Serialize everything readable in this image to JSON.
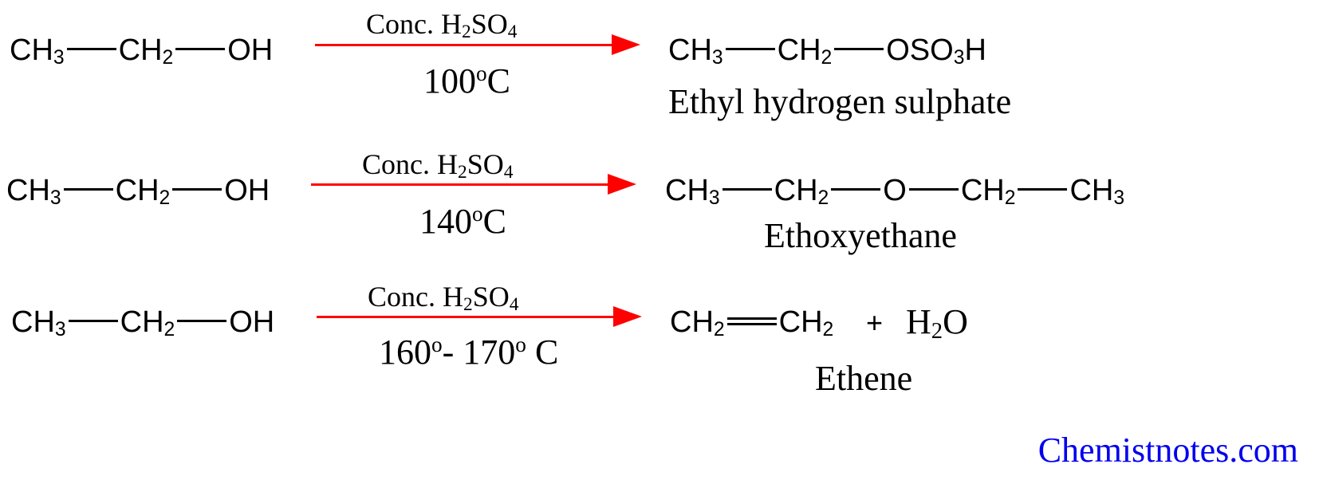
{
  "reactions": [
    {
      "reactant": {
        "g1": "CH",
        "g1_sub": "3",
        "g2": "CH",
        "g2_sub": "2",
        "g3": "OH"
      },
      "condition_top": {
        "pre": "Conc. H",
        "sub": "2",
        "mid": "SO",
        "sub2": "4"
      },
      "condition_bottom": {
        "num": "100",
        "sup": "o",
        "unit": "C"
      },
      "product": {
        "g1": "CH",
        "g1_sub": "3",
        "g2": "CH",
        "g2_sub": "2",
        "g3": "OSO",
        "g3_sub": "3",
        "g3_end": "H"
      },
      "name": "Ethyl hydrogen sulphate"
    },
    {
      "reactant": {
        "g1": "CH",
        "g1_sub": "3",
        "g2": "CH",
        "g2_sub": "2",
        "g3": "OH"
      },
      "condition_top": {
        "pre": "Conc. H",
        "sub": "2",
        "mid": "SO",
        "sub2": "4"
      },
      "condition_bottom": {
        "num": "140",
        "sup": "o",
        "unit": "C"
      },
      "product": {
        "g1": "CH",
        "g1_sub": "3",
        "g2": "CH",
        "g2_sub": "2",
        "g3": "O",
        "g4": "CH",
        "g4_sub": "2",
        "g5": "CH",
        "g5_sub": "3"
      },
      "name": "Ethoxyethane"
    },
    {
      "reactant": {
        "g1": "CH",
        "g1_sub": "3",
        "g2": "CH",
        "g2_sub": "2",
        "g3": "OH"
      },
      "condition_top": {
        "pre": "Conc. H",
        "sub": "2",
        "mid": "SO",
        "sub2": "4"
      },
      "condition_bottom": {
        "num1": "160",
        "sup1": "o",
        "dash": "- 170",
        "sup2": "o",
        "unit": " C"
      },
      "product": {
        "g1": "CH",
        "g1_sub": "2",
        "g2": "CH",
        "g2_sub": "2",
        "plus": "+",
        "water": "H",
        "water_sub": "2",
        "water_end": "O"
      },
      "name": "Ethene"
    }
  ],
  "watermark": "Chemistnotes.com",
  "colors": {
    "arrow": "#ff0000",
    "watermark": "#0000ee",
    "text": "#000000"
  }
}
